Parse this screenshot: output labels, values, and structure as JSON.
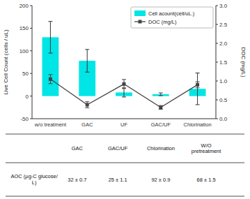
{
  "chart_data": {
    "type": "bar",
    "categories": [
      "w/o treatment",
      "GAC",
      "UF",
      "GAC/UF",
      "Chlorination"
    ],
    "series": [
      {
        "name": "Cell acount(cell/uL.)",
        "type": "bar",
        "color": "#00E5E5",
        "values": [
          130,
          78,
          8,
          4,
          16
        ],
        "errors": [
          35,
          25,
          10,
          3,
          35
        ]
      },
      {
        "name": "DOC (mg/L)",
        "type": "line",
        "axis": "y2",
        "color": "#444444",
        "marker": "square",
        "values": [
          1.05,
          0.37,
          0.92,
          0.3,
          0.9
        ],
        "errors": [
          0.12,
          0.08,
          0.12,
          0.05,
          0.08
        ]
      }
    ],
    "ylabel": "Live Cell Count (cells / uL)",
    "y2label": "DOC (mg/L)",
    "ylim": [
      -50,
      200
    ],
    "yticks": [
      -50,
      0,
      50,
      100,
      150,
      200
    ],
    "y2lim": [
      0,
      3.0
    ],
    "y2ticks": [
      {
        "value": 0,
        "label": "0.0"
      },
      0.5,
      {
        "value": 1,
        "label": "1.0"
      },
      1.5,
      {
        "value": 2,
        "label": "2.0"
      },
      2.5,
      {
        "value": 3,
        "label": "3.0"
      }
    ],
    "grid": false,
    "legend": "upper right",
    "table": {
      "headers": [
        "GAC",
        "GAC/UF",
        "Chlorination",
        "W/O\npretreatment"
      ],
      "row_label": "AOC (μg-C glucose/\nL)",
      "values": [
        "32 ± 0.7",
        "25 ± 1.1",
        "92 ± 0.9",
        "68 ± 1.5"
      ]
    }
  }
}
